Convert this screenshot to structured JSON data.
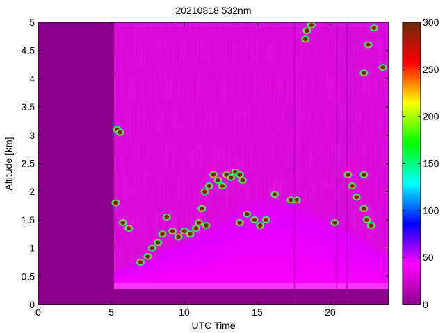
{
  "chart_data": {
    "type": "heatmap",
    "title": "20210818 532nm",
    "xlabel": "UTC Time",
    "ylabel": "Altitude [km]",
    "xlim": [
      0,
      24
    ],
    "ylim": [
      0,
      5
    ],
    "x_ticks": [
      0,
      5,
      10,
      15,
      20
    ],
    "y_ticks": [
      0,
      0.5,
      1,
      1.5,
      2,
      2.5,
      3,
      3.5,
      4,
      4.5,
      5
    ],
    "colorbar": {
      "range": [
        0,
        300
      ],
      "ticks": [
        0,
        50,
        100,
        150,
        200,
        250,
        300
      ],
      "colormap": [
        "#8b008b",
        "#ff00ff",
        "#0000ff",
        "#00ffff",
        "#00ff00",
        "#ffff00",
        "#ff0000",
        "#6b2a0a"
      ]
    },
    "no_data_intervals": [
      [
        0,
        5.2
      ]
    ],
    "surface_layer": {
      "altitude_range": [
        0.28,
        0.38
      ],
      "value": 40
    },
    "boundary_layer_top": {
      "x": [
        5.2,
        6,
        7,
        8,
        9,
        10,
        11,
        12,
        13,
        14,
        15,
        16,
        17,
        18,
        19,
        20,
        21,
        22,
        23,
        24
      ],
      "y": [
        0.6,
        0.7,
        0.8,
        0.9,
        1.1,
        1.2,
        1.35,
        1.5,
        1.7,
        1.9,
        2.0,
        2.0,
        2.0,
        1.9,
        1.75,
        1.6,
        1.5,
        1.3,
        1.1,
        0.9
      ]
    },
    "cloud_points": [
      [
        5.4,
        3.1
      ],
      [
        5.6,
        3.05
      ],
      [
        5.3,
        1.8
      ],
      [
        5.8,
        1.45
      ],
      [
        6.2,
        1.35
      ],
      [
        7.0,
        0.75
      ],
      [
        7.5,
        0.85
      ],
      [
        7.8,
        1.0
      ],
      [
        8.2,
        1.1
      ],
      [
        8.5,
        1.25
      ],
      [
        8.8,
        1.55
      ],
      [
        9.2,
        1.3
      ],
      [
        9.6,
        1.2
      ],
      [
        10.0,
        1.3
      ],
      [
        10.4,
        1.25
      ],
      [
        10.8,
        1.35
      ],
      [
        11.0,
        1.45
      ],
      [
        11.5,
        1.4
      ],
      [
        11.2,
        1.7
      ],
      [
        11.4,
        2.0
      ],
      [
        11.7,
        2.1
      ],
      [
        12.0,
        2.3
      ],
      [
        12.3,
        2.2
      ],
      [
        12.6,
        2.1
      ],
      [
        12.9,
        2.3
      ],
      [
        13.2,
        2.25
      ],
      [
        13.5,
        2.35
      ],
      [
        13.8,
        2.3
      ],
      [
        14.0,
        2.2
      ],
      [
        13.8,
        1.45
      ],
      [
        14.3,
        1.6
      ],
      [
        14.8,
        1.5
      ],
      [
        15.2,
        1.4
      ],
      [
        15.6,
        1.5
      ],
      [
        16.2,
        1.95
      ],
      [
        17.3,
        1.85
      ],
      [
        17.7,
        1.85
      ],
      [
        20.3,
        1.45
      ],
      [
        21.2,
        2.3
      ],
      [
        21.5,
        2.1
      ],
      [
        21.8,
        1.9
      ],
      [
        22.3,
        1.7
      ],
      [
        22.5,
        1.5
      ],
      [
        22.8,
        1.4
      ],
      [
        22.3,
        2.3
      ],
      [
        18.4,
        4.85
      ],
      [
        18.7,
        4.95
      ],
      [
        18.3,
        4.7
      ],
      [
        22.3,
        4.1
      ],
      [
        22.6,
        4.6
      ],
      [
        23.0,
        4.9
      ],
      [
        23.6,
        4.2
      ]
    ]
  }
}
